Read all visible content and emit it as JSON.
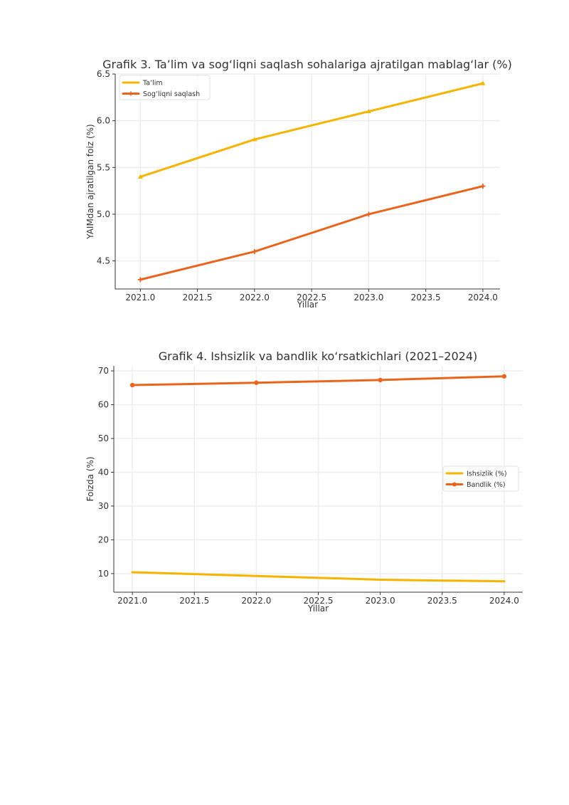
{
  "colors": {
    "series_1": "#F4B400",
    "series_2": "#E8651E",
    "grid": "#eeeeee",
    "axis": "#333333"
  },
  "chart_data": [
    {
      "type": "line",
      "title": "Grafik 3. Ta’lim va sog‘liqni saqlash sohalariga ajratilgan mablag‘lar (%)",
      "xlabel": "Yillar",
      "ylabel": "YAIMdan ajratilgan foiz (%)",
      "x": [
        2021,
        2022,
        2023,
        2024
      ],
      "xlim": [
        2020.78,
        2024.15
      ],
      "ylim": [
        4.2,
        6.5
      ],
      "xticks": [
        2021.0,
        2021.5,
        2022.0,
        2022.5,
        2023.0,
        2023.5,
        2024.0
      ],
      "xtick_labels": [
        "2021.0",
        "2021.5",
        "2022.0",
        "2022.5",
        "2023.0",
        "2023.5",
        "2024.0"
      ],
      "yticks": [
        4.5,
        5.0,
        5.5,
        6.0,
        6.5
      ],
      "ytick_labels": [
        "4.5",
        "5.0",
        "5.5",
        "6.0",
        "6.5"
      ],
      "grid": true,
      "legend_position": "top-left",
      "series": [
        {
          "name": "Ta’lim",
          "values": [
            5.4,
            5.8,
            6.1,
            6.4
          ],
          "marker": "triangle"
        },
        {
          "name": "Sog‘liqni saqlash",
          "values": [
            4.3,
            4.6,
            5.0,
            5.3
          ],
          "marker": "plus"
        }
      ]
    },
    {
      "type": "line",
      "title": "Grafik 4. Ishsizlik va bandlik ko‘rsatkichlari (2021–2024)",
      "xlabel": "Yillar",
      "ylabel": "Foizda (%)",
      "x": [
        2021,
        2022,
        2023,
        2024
      ],
      "xlim": [
        2020.85,
        2024.15
      ],
      "ylim": [
        4.5,
        71.5
      ],
      "xticks": [
        2021.0,
        2021.5,
        2022.0,
        2022.5,
        2023.0,
        2023.5,
        2024.0
      ],
      "xtick_labels": [
        "2021.0",
        "2021.5",
        "2022.0",
        "2022.5",
        "2023.0",
        "2023.5",
        "2024.0"
      ],
      "yticks": [
        10,
        20,
        30,
        40,
        50,
        60,
        70
      ],
      "ytick_labels": [
        "10",
        "20",
        "30",
        "40",
        "50",
        "60",
        "70"
      ],
      "grid": true,
      "legend_position": "center-right",
      "series": [
        {
          "name": "Ishsizlik (%)",
          "values": [
            10.4,
            9.3,
            8.2,
            7.7
          ],
          "marker": "none"
        },
        {
          "name": "Bandlik (%)",
          "values": [
            65.8,
            66.5,
            67.3,
            68.4
          ],
          "marker": "dot"
        }
      ]
    }
  ]
}
